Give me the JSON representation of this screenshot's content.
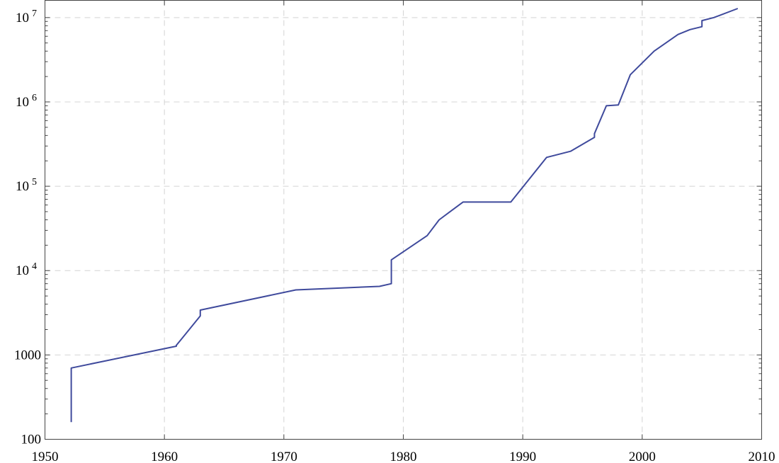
{
  "chart_data": {
    "type": "line",
    "title": "",
    "xlabel": "",
    "ylabel": "",
    "xlim": [
      1950,
      2010
    ],
    "ylim": [
      100,
      16000000
    ],
    "yscale": "log",
    "grid": true,
    "line_color": "#3f4a9c",
    "x_ticks": [
      "1950",
      "1960",
      "1970",
      "1980",
      "1990",
      "2000",
      "2010"
    ],
    "y_ticks": [
      {
        "base": "100",
        "exp": ""
      },
      {
        "base": "1000",
        "exp": ""
      },
      {
        "base": "10",
        "exp": "4"
      },
      {
        "base": "10",
        "exp": "5"
      },
      {
        "base": "10",
        "exp": "6"
      },
      {
        "base": "10",
        "exp": "7"
      }
    ],
    "series": [
      {
        "x": [
          1952.2,
          1952.2,
          1961.0,
          1961.0,
          1963.0,
          1963.0,
          1971.0,
          1978.0,
          1979.0,
          1979.0,
          1982.0,
          1983.0,
          1985.0,
          1989.0,
          1992.0,
          1994.0,
          1996.0,
          1996.0,
          1997.0,
          1998.0,
          1999.0,
          2001.0,
          2003.0,
          2004.0,
          2005.0,
          2005.0,
          2006.0,
          2008.0
        ],
        "y": [
          160,
          700,
          1270,
          1300,
          2900,
          3400,
          5900,
          6500,
          7000,
          13400,
          26000,
          40000,
          65000,
          65000,
          220000,
          260000,
          380000,
          420000,
          900000,
          920000,
          2100000,
          4000000,
          6300000,
          7200000,
          7800000,
          9200000,
          10000000,
          12800000
        ]
      }
    ]
  }
}
